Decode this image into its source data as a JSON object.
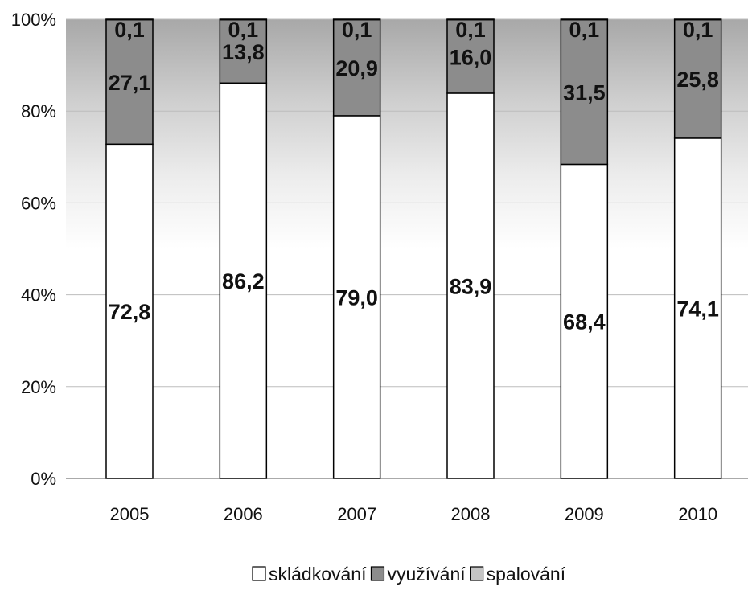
{
  "chart_data": {
    "type": "bar",
    "stacked": true,
    "percent_stacked": true,
    "categories": [
      "2005",
      "2006",
      "2007",
      "2008",
      "2009",
      "2010"
    ],
    "series": [
      {
        "name": "skládkování",
        "values": [
          72.8,
          86.2,
          79.0,
          83.9,
          68.4,
          74.1
        ],
        "labels": [
          "72,8",
          "86,2",
          "79,0",
          "83,9",
          "68,4",
          "74,1"
        ],
        "color": "#ffffff"
      },
      {
        "name": "využívání",
        "values": [
          27.1,
          13.8,
          20.9,
          16.0,
          31.5,
          25.8
        ],
        "labels": [
          "27,1",
          "13,8",
          "20,9",
          "16,0",
          "31,5",
          "25,8"
        ],
        "color": "#8c8c8c"
      },
      {
        "name": "spalování",
        "values": [
          0.1,
          0.1,
          0.1,
          0.1,
          0.1,
          0.1
        ],
        "labels": [
          "0,1",
          "0,1",
          "0,1",
          "0,1",
          "0,1",
          "0,1"
        ],
        "color": "#c4c4c4"
      }
    ],
    "y_ticks": [
      "0%",
      "20%",
      "40%",
      "60%",
      "80%",
      "100%"
    ],
    "ylim": [
      0,
      100
    ],
    "grid": true,
    "legend_position": "bottom"
  }
}
